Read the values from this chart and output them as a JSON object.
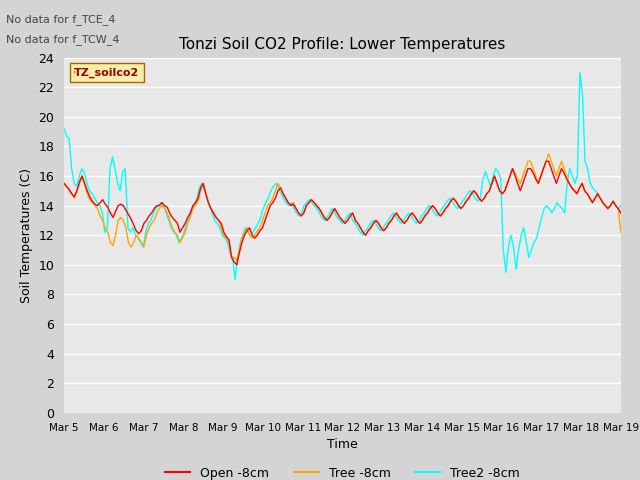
{
  "title": "Tonzi Soil CO2 Profile: Lower Temperatures",
  "xlabel": "Time",
  "ylabel": "Soil Temperatures (C)",
  "annotations": [
    "No data for f_TCE_4",
    "No data for f_TCW_4"
  ],
  "legend_label": "TZ_soilco2",
  "ylim": [
    0,
    24
  ],
  "yticks": [
    0,
    2,
    4,
    6,
    8,
    10,
    12,
    14,
    16,
    18,
    20,
    22,
    24
  ],
  "xtick_labels": [
    "Mar 5",
    "Mar 6",
    "Mar 7",
    "Mar 8",
    "Mar 9",
    "Mar 10",
    "Mar 11",
    "Mar 12",
    "Mar 13",
    "Mar 14",
    "Mar 15",
    "Mar 16",
    "Mar 17",
    "Mar 18",
    "Mar 19"
  ],
  "line_labels": [
    "Open -8cm",
    "Tree -8cm",
    "Tree2 -8cm"
  ],
  "line_colors": [
    "#ff0000",
    "#ffa500",
    "#00ffff"
  ],
  "plot_bg_color": "#e8e8e8",
  "fig_bg_color": "#d4d4d4",
  "grid_color": "#ffffff",
  "open_8cm": [
    15.5,
    15.3,
    15.1,
    14.8,
    14.6,
    15.0,
    15.6,
    16.0,
    15.5,
    15.0,
    14.6,
    14.3,
    14.1,
    14.0,
    14.2,
    14.4,
    14.1,
    13.9,
    13.5,
    13.2,
    13.6,
    14.0,
    14.1,
    14.0,
    13.7,
    13.4,
    13.1,
    12.7,
    12.3,
    12.1,
    12.3,
    12.8,
    13.0,
    13.3,
    13.5,
    13.8,
    14.0,
    14.0,
    14.2,
    14.0,
    13.9,
    13.5,
    13.2,
    13.0,
    12.8,
    12.2,
    12.5,
    12.8,
    13.2,
    13.5,
    14.0,
    14.2,
    14.5,
    15.2,
    15.5,
    14.8,
    14.2,
    13.8,
    13.5,
    13.2,
    13.0,
    12.8,
    12.2,
    11.9,
    11.7,
    10.5,
    10.2,
    10.0,
    10.8,
    11.5,
    12.0,
    12.3,
    12.5,
    12.0,
    11.8,
    12.0,
    12.3,
    12.5,
    13.0,
    13.5,
    14.0,
    14.2,
    14.5,
    15.0,
    15.2,
    14.8,
    14.5,
    14.2,
    14.0,
    14.1,
    13.8,
    13.5,
    13.3,
    13.5,
    14.0,
    14.2,
    14.4,
    14.2,
    14.0,
    13.8,
    13.5,
    13.2,
    13.0,
    13.2,
    13.5,
    13.8,
    13.5,
    13.2,
    13.0,
    12.8,
    13.0,
    13.3,
    13.5,
    13.0,
    12.8,
    12.5,
    12.2,
    12.0,
    12.3,
    12.5,
    12.8,
    13.0,
    12.8,
    12.5,
    12.3,
    12.5,
    12.8,
    13.0,
    13.3,
    13.5,
    13.2,
    13.0,
    12.8,
    13.0,
    13.3,
    13.5,
    13.3,
    13.0,
    12.8,
    13.0,
    13.3,
    13.5,
    13.8,
    14.0,
    13.8,
    13.5,
    13.3,
    13.5,
    13.8,
    14.0,
    14.3,
    14.5,
    14.3,
    14.0,
    13.8,
    14.0,
    14.3,
    14.5,
    14.8,
    15.0,
    14.8,
    14.5,
    14.3,
    14.5,
    14.8,
    15.0,
    15.5,
    16.0,
    15.5,
    15.0,
    14.8,
    15.0,
    15.5,
    16.0,
    16.5,
    16.0,
    15.5,
    15.0,
    15.5,
    16.0,
    16.5,
    16.5,
    16.2,
    15.8,
    15.5,
    16.0,
    16.5,
    17.0,
    17.0,
    16.5,
    16.0,
    15.5,
    16.0,
    16.5,
    16.2,
    15.8,
    15.5,
    15.2,
    15.0,
    14.8,
    15.2,
    15.5,
    15.0,
    14.8,
    14.5,
    14.2,
    14.5,
    14.8,
    14.5,
    14.2,
    14.0,
    13.8,
    14.0,
    14.3,
    14.0,
    13.8,
    13.5
  ],
  "tree_8cm": [
    15.5,
    15.3,
    15.0,
    14.8,
    14.5,
    15.0,
    15.5,
    16.0,
    15.4,
    14.8,
    14.4,
    14.2,
    14.0,
    13.8,
    13.3,
    13.0,
    12.5,
    12.2,
    11.5,
    11.3,
    12.0,
    13.0,
    13.2,
    13.0,
    12.5,
    11.5,
    11.2,
    11.5,
    12.0,
    11.8,
    11.5,
    11.2,
    12.0,
    12.5,
    12.8,
    13.0,
    13.5,
    13.8,
    14.0,
    13.8,
    13.5,
    13.0,
    12.5,
    12.2,
    12.0,
    11.5,
    11.8,
    12.2,
    12.8,
    13.2,
    13.8,
    14.0,
    14.3,
    15.0,
    15.5,
    14.8,
    14.2,
    13.8,
    13.5,
    13.2,
    13.0,
    12.5,
    12.0,
    11.8,
    11.5,
    10.5,
    10.5,
    10.3,
    11.0,
    11.8,
    12.2,
    12.5,
    12.0,
    11.8,
    12.0,
    12.3,
    12.5,
    13.0,
    13.5,
    14.0,
    14.2,
    14.5,
    15.0,
    15.5,
    15.2,
    14.8,
    14.5,
    14.2,
    14.0,
    14.2,
    13.8,
    13.5,
    13.3,
    13.5,
    14.0,
    14.2,
    14.4,
    14.2,
    14.0,
    13.8,
    13.5,
    13.2,
    13.0,
    13.2,
    13.5,
    13.8,
    13.5,
    13.2,
    13.0,
    12.8,
    13.0,
    13.3,
    13.5,
    13.0,
    12.8,
    12.5,
    12.2,
    12.0,
    12.3,
    12.5,
    12.8,
    13.0,
    12.8,
    12.5,
    12.3,
    12.5,
    12.8,
    13.0,
    13.3,
    13.5,
    13.2,
    13.0,
    12.8,
    13.0,
    13.3,
    13.5,
    13.3,
    13.0,
    12.8,
    13.0,
    13.3,
    13.5,
    13.8,
    14.0,
    13.8,
    13.5,
    13.3,
    13.5,
    13.8,
    14.0,
    14.3,
    14.5,
    14.3,
    14.0,
    13.8,
    14.0,
    14.3,
    14.5,
    14.8,
    15.0,
    14.8,
    14.5,
    14.3,
    14.5,
    14.8,
    15.0,
    15.5,
    16.0,
    15.5,
    15.0,
    14.8,
    15.0,
    15.5,
    16.0,
    16.5,
    16.2,
    15.8,
    15.5,
    16.0,
    16.5,
    17.0,
    17.0,
    16.5,
    16.0,
    15.5,
    16.0,
    16.5,
    17.0,
    17.5,
    17.0,
    16.5,
    16.0,
    16.5,
    17.0,
    16.5,
    16.0,
    15.5,
    15.2,
    15.0,
    14.8,
    15.2,
    15.5,
    15.0,
    14.8,
    14.5,
    14.2,
    14.5,
    14.8,
    14.5,
    14.2,
    14.0,
    13.8,
    14.0,
    14.3,
    14.0,
    13.8,
    12.2
  ],
  "tree2_8cm": [
    19.2,
    18.7,
    18.5,
    16.5,
    15.5,
    15.3,
    16.0,
    16.5,
    16.2,
    15.5,
    15.0,
    14.8,
    14.5,
    14.2,
    14.0,
    13.5,
    12.2,
    12.5,
    16.5,
    17.3,
    16.5,
    15.5,
    15.0,
    16.3,
    16.5,
    12.5,
    12.2,
    12.5,
    12.0,
    11.8,
    11.5,
    11.2,
    12.2,
    12.8,
    13.0,
    13.5,
    13.8,
    14.0,
    14.2,
    14.0,
    13.5,
    13.0,
    12.5,
    12.2,
    12.0,
    11.5,
    11.8,
    12.2,
    12.8,
    13.2,
    13.8,
    14.0,
    14.5,
    15.2,
    15.5,
    15.0,
    14.5,
    14.0,
    13.5,
    13.0,
    12.8,
    12.5,
    12.0,
    11.8,
    11.5,
    10.8,
    10.5,
    9.0,
    10.5,
    11.5,
    12.0,
    12.5,
    12.2,
    12.0,
    12.2,
    12.5,
    12.8,
    13.2,
    13.8,
    14.2,
    14.5,
    15.0,
    15.3,
    15.5,
    15.2,
    14.8,
    14.5,
    14.2,
    14.0,
    14.2,
    13.8,
    13.5,
    13.3,
    13.5,
    14.0,
    14.2,
    14.4,
    14.2,
    14.0,
    13.8,
    13.5,
    13.2,
    13.0,
    13.2,
    13.5,
    13.8,
    13.5,
    13.2,
    13.0,
    12.8,
    13.0,
    13.3,
    13.5,
    13.0,
    12.8,
    12.5,
    12.2,
    12.0,
    12.3,
    12.5,
    12.8,
    13.0,
    12.8,
    12.5,
    12.3,
    12.5,
    12.8,
    13.0,
    13.3,
    13.5,
    13.2,
    13.0,
    12.8,
    13.0,
    13.3,
    13.5,
    13.3,
    13.0,
    12.8,
    13.0,
    13.3,
    13.5,
    13.8,
    14.0,
    13.8,
    13.5,
    13.3,
    13.5,
    13.8,
    14.0,
    14.3,
    14.5,
    14.3,
    14.0,
    13.8,
    14.0,
    14.3,
    14.5,
    14.8,
    15.0,
    14.8,
    14.5,
    14.3,
    14.5,
    15.8,
    16.3,
    15.8,
    15.3,
    16.0,
    16.5,
    16.3,
    15.8,
    11.0,
    9.5,
    11.2,
    12.0,
    11.2,
    9.7,
    11.0,
    12.0,
    12.5,
    11.5,
    10.5,
    11.0,
    11.5,
    11.8,
    12.5,
    13.2,
    13.8,
    14.0,
    13.8,
    13.5,
    13.8,
    14.2,
    14.0,
    13.8,
    13.5,
    15.5,
    16.5,
    16.0,
    15.5,
    16.0,
    23.0,
    21.5,
    17.0,
    16.5,
    15.5,
    15.2,
    15.0,
    14.8,
    14.5,
    14.2,
    14.0,
    13.8,
    14.0,
    14.3,
    14.0,
    13.8,
    14.0
  ]
}
